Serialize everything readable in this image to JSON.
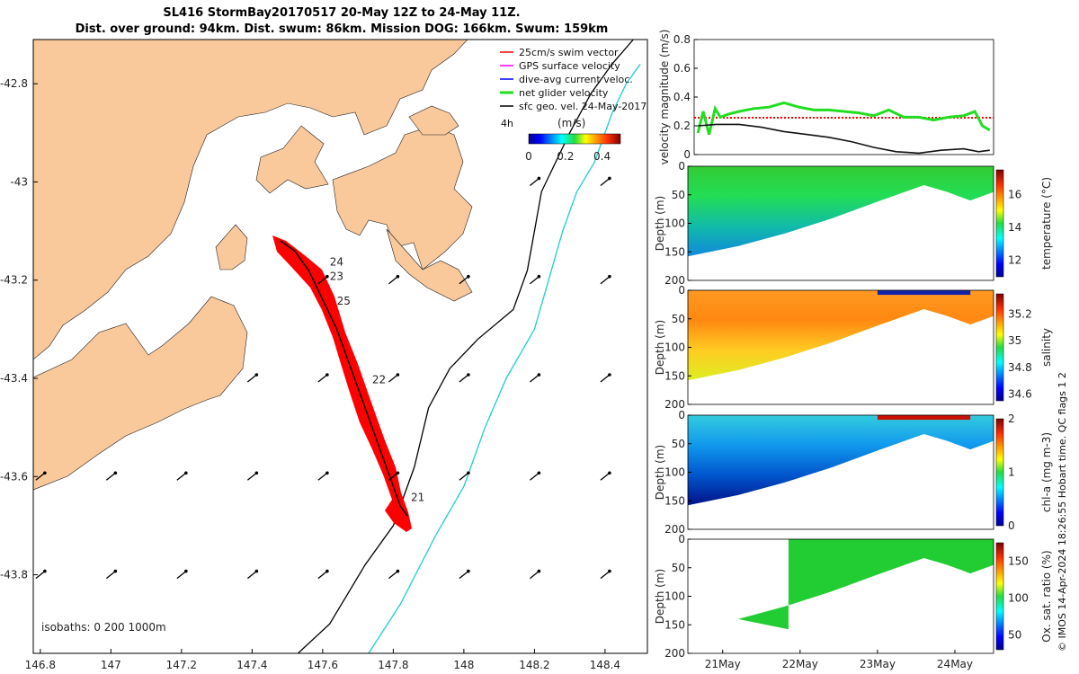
{
  "header": {
    "title_line1": "SL416 StormBay20170517 20-May 12Z to 24-May 11Z.",
    "title_line2": "Dist. over ground: 94km. Dist. swum: 86km. Mission DOG: 166km. Swum: 159km"
  },
  "colors": {
    "land": "#f9c89b",
    "sea": "#ffffff",
    "track": "#ff0000",
    "net_velocity": "#22dd22",
    "current_path": "#2ad0d0",
    "isobath": "#000000"
  },
  "chart_data": [
    {
      "type": "map",
      "name": "glider-track-map",
      "xlim": [
        146.78,
        148.52
      ],
      "ylim": [
        -43.96,
        -42.71
      ],
      "x_ticks": [
        "146.8",
        "147",
        "147.2",
        "147.4",
        "147.6",
        "147.8",
        "148",
        "148.2",
        "148.4"
      ],
      "x_tick_values": [
        146.8,
        147.0,
        147.2,
        147.4,
        147.6,
        147.8,
        148.0,
        148.2,
        148.4
      ],
      "y_ticks": [
        "-42.8",
        "-43",
        "-43.2",
        "-43.4",
        "-43.6",
        "-43.8"
      ],
      "y_tick_values": [
        -42.8,
        -43.0,
        -43.2,
        -43.4,
        -43.6,
        -43.8
      ],
      "day_labels": [
        {
          "text": "24",
          "lon": 147.62,
          "lat": -43.17
        },
        {
          "text": "23",
          "lon": 147.62,
          "lat": -43.2
        },
        {
          "text": "25",
          "lon": 147.64,
          "lat": -43.25
        },
        {
          "text": "22",
          "lon": 147.74,
          "lat": -43.41
        },
        {
          "text": "21",
          "lon": 147.85,
          "lat": -43.65
        }
      ],
      "track": [
        [
          147.48,
          -43.12
        ],
        [
          147.52,
          -43.14
        ],
        [
          147.56,
          -43.18
        ],
        [
          147.6,
          -43.24
        ],
        [
          147.64,
          -43.3
        ],
        [
          147.68,
          -43.38
        ],
        [
          147.72,
          -43.46
        ],
        [
          147.76,
          -43.54
        ],
        [
          147.8,
          -43.62
        ],
        [
          147.82,
          -43.66
        ],
        [
          147.84,
          -43.68
        ]
      ],
      "isobath_200": [
        [
          147.53,
          -43.96
        ],
        [
          147.62,
          -43.9
        ],
        [
          147.72,
          -43.78
        ],
        [
          147.8,
          -43.7
        ],
        [
          147.86,
          -43.58
        ],
        [
          147.9,
          -43.46
        ],
        [
          147.96,
          -43.38
        ],
        [
          148.04,
          -43.32
        ],
        [
          148.14,
          -43.26
        ],
        [
          148.18,
          -43.18
        ],
        [
          148.2,
          -43.1
        ],
        [
          148.22,
          -43.02
        ],
        [
          148.26,
          -42.96
        ],
        [
          148.3,
          -42.9
        ],
        [
          148.36,
          -42.82
        ],
        [
          148.42,
          -42.76
        ],
        [
          148.48,
          -42.71
        ]
      ],
      "current_path": [
        [
          147.73,
          -43.96
        ],
        [
          147.82,
          -43.86
        ],
        [
          147.92,
          -43.72
        ],
        [
          148.0,
          -43.62
        ],
        [
          148.06,
          -43.5
        ],
        [
          148.12,
          -43.4
        ],
        [
          148.2,
          -43.3
        ],
        [
          148.24,
          -43.2
        ],
        [
          148.28,
          -43.1
        ],
        [
          148.32,
          -43.02
        ],
        [
          148.37,
          -42.96
        ],
        [
          148.42,
          -42.86
        ],
        [
          148.46,
          -42.8
        ],
        [
          148.5,
          -42.76
        ]
      ],
      "isobath_labels": "isobaths: 0   200  1000m",
      "legend": [
        {
          "label": "25cm/s swim vector",
          "color": "#ff0000"
        },
        {
          "label": "GPS surface velocity",
          "color": "#ff00ff"
        },
        {
          "label": "dive-avg current veloc.",
          "color": "#0000ff"
        },
        {
          "label": "net glider velocity",
          "color": "#22dd22"
        },
        {
          "label": "sfc geo. vel. 24-May-2017",
          "color": "#000000"
        }
      ],
      "colorbar": {
        "unit_label": "(m/s)",
        "corner_label": "4h",
        "ticks": [
          "0",
          "0.2",
          "0.4"
        ],
        "range": [
          0,
          0.5
        ]
      }
    },
    {
      "type": "line",
      "name": "velocity-panel",
      "ylabel": "velocity magnitude (m/s)",
      "ylim": [
        0,
        0.8
      ],
      "y_ticks": [
        "0",
        "0.2",
        "0.4",
        "0.6",
        "0.8"
      ],
      "x_day_range": [
        20.5,
        24.5
      ],
      "series": [
        {
          "name": "net glider velocity",
          "color": "#22dd22",
          "x": [
            20.55,
            20.62,
            20.7,
            20.78,
            20.85,
            20.95,
            21.1,
            21.3,
            21.5,
            21.7,
            21.9,
            22.1,
            22.3,
            22.5,
            22.7,
            22.9,
            23.1,
            23.3,
            23.5,
            23.7,
            23.9,
            24.1,
            24.25,
            24.35,
            24.45
          ],
          "y": [
            0.15,
            0.3,
            0.14,
            0.32,
            0.26,
            0.28,
            0.3,
            0.32,
            0.33,
            0.36,
            0.33,
            0.31,
            0.31,
            0.3,
            0.29,
            0.27,
            0.31,
            0.26,
            0.26,
            0.24,
            0.26,
            0.27,
            0.3,
            0.2,
            0.17
          ]
        },
        {
          "name": "sfc geo. vel.",
          "color": "#000000",
          "x": [
            20.55,
            20.8,
            21.1,
            21.4,
            21.7,
            22.0,
            22.3,
            22.6,
            22.9,
            23.2,
            23.5,
            23.8,
            24.1,
            24.3,
            24.45
          ],
          "y": [
            0.2,
            0.21,
            0.21,
            0.19,
            0.16,
            0.14,
            0.12,
            0.09,
            0.05,
            0.02,
            0.01,
            0.03,
            0.04,
            0.02,
            0.03
          ]
        }
      ]
    },
    {
      "type": "heatmap",
      "name": "temperature-section",
      "ylabel": "Depth (m)",
      "ylim": [
        0,
        200
      ],
      "y_ticks": [
        "0",
        "50",
        "100",
        "150",
        "200"
      ],
      "colorbar_label": "temperature (°C)",
      "colorbar_ticks": [
        "12",
        "14",
        "16"
      ],
      "colorbar_range": [
        11,
        17.5
      ]
    },
    {
      "type": "heatmap",
      "name": "salinity-section",
      "ylabel": "Depth (m)",
      "ylim": [
        0,
        200
      ],
      "y_ticks": [
        "0",
        "50",
        "100",
        "150",
        "200"
      ],
      "colorbar_label": "salinity",
      "colorbar_ticks": [
        "34.6",
        "34.8",
        "35",
        "35.2"
      ],
      "colorbar_range": [
        34.55,
        35.35
      ]
    },
    {
      "type": "heatmap",
      "name": "chla-section",
      "ylabel": "Depth (m)",
      "ylim": [
        0,
        200
      ],
      "y_ticks": [
        "0",
        "50",
        "100",
        "150",
        "200"
      ],
      "colorbar_label": "chl-a (mg m-3)",
      "colorbar_ticks": [
        "0",
        "1",
        "2"
      ],
      "colorbar_range": [
        0,
        2
      ]
    },
    {
      "type": "heatmap",
      "name": "oxygen-section",
      "ylabel": "Depth (m)",
      "ylim": [
        0,
        200
      ],
      "y_ticks": [
        "0",
        "50",
        "100",
        "150",
        "200"
      ],
      "x_ticks": [
        "21May",
        "22May",
        "23May",
        "24May"
      ],
      "colorbar_label": "Ox. sat. ratio (%)",
      "colorbar_ticks": [
        "50",
        "100",
        "150"
      ],
      "colorbar_range": [
        30,
        175
      ]
    }
  ],
  "footer": {
    "side_note": "© IMOS 14-Apr-2024 18:26:55 Hobart time. QC flags 1  2"
  }
}
